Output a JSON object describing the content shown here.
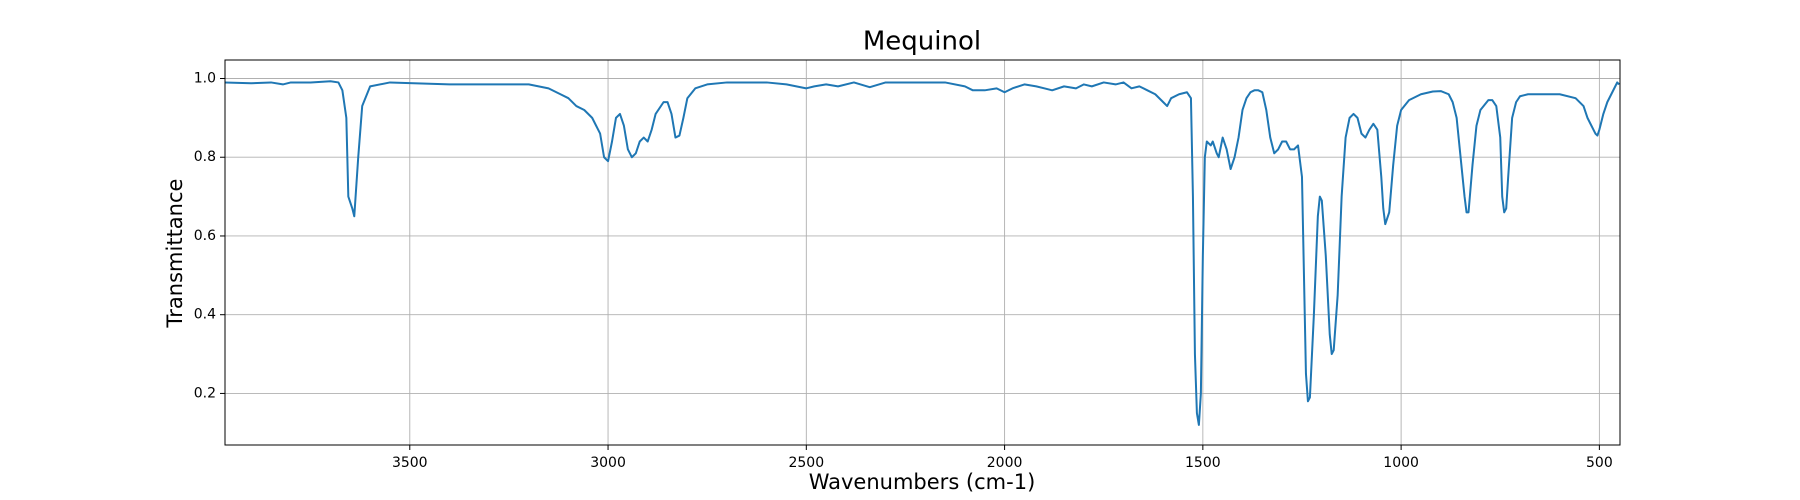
{
  "chart_data": {
    "type": "line",
    "title": "Mequinol",
    "xlabel": "Wavenumbers (cm-1)",
    "ylabel": "Transmittance",
    "color": "#1f77b4",
    "grid": true,
    "xlim": [
      3966,
      448
    ],
    "ylim": [
      0.069,
      1.047
    ],
    "xticks": [
      3500,
      3000,
      2500,
      2000,
      1500,
      1000,
      500
    ],
    "yticks": [
      0.2,
      0.4,
      0.6,
      0.8,
      {
        "value": 1,
        "label": "1.0"
      }
    ],
    "x": [
      3966,
      3900,
      3850,
      3820,
      3800,
      3750,
      3700,
      3680,
      3670,
      3660,
      3655,
      3645,
      3640,
      3630,
      3620,
      3600,
      3550,
      3400,
      3200,
      3150,
      3120,
      3100,
      3080,
      3060,
      3040,
      3030,
      3020,
      3010,
      3000,
      2990,
      2980,
      2970,
      2960,
      2950,
      2940,
      2930,
      2920,
      2910,
      2900,
      2890,
      2880,
      2860,
      2850,
      2840,
      2830,
      2820,
      2810,
      2800,
      2780,
      2750,
      2700,
      2600,
      2550,
      2500,
      2480,
      2450,
      2420,
      2380,
      2340,
      2300,
      2200,
      2150,
      2100,
      2080,
      2050,
      2020,
      2000,
      1980,
      1950,
      1920,
      1900,
      1880,
      1850,
      1820,
      1800,
      1780,
      1750,
      1720,
      1700,
      1680,
      1660,
      1640,
      1620,
      1600,
      1590,
      1580,
      1560,
      1540,
      1530,
      1525,
      1520,
      1515,
      1510,
      1505,
      1500,
      1495,
      1490,
      1480,
      1475,
      1465,
      1460,
      1450,
      1440,
      1430,
      1420,
      1410,
      1400,
      1390,
      1380,
      1370,
      1360,
      1350,
      1340,
      1330,
      1320,
      1310,
      1300,
      1290,
      1280,
      1270,
      1260,
      1250,
      1245,
      1240,
      1235,
      1230,
      1220,
      1210,
      1205,
      1200,
      1190,
      1180,
      1175,
      1170,
      1160,
      1150,
      1140,
      1130,
      1120,
      1110,
      1100,
      1090,
      1080,
      1070,
      1060,
      1050,
      1045,
      1040,
      1030,
      1020,
      1010,
      1000,
      980,
      950,
      920,
      900,
      880,
      870,
      860,
      850,
      840,
      835,
      830,
      820,
      810,
      800,
      780,
      770,
      760,
      750,
      745,
      740,
      735,
      730,
      720,
      710,
      700,
      680,
      650,
      600,
      560,
      540,
      530,
      520,
      510,
      505,
      500,
      490,
      480,
      470,
      460,
      455,
      450
    ],
    "values": [
      0.99,
      0.988,
      0.99,
      0.985,
      0.99,
      0.99,
      0.993,
      0.99,
      0.97,
      0.9,
      0.7,
      0.67,
      0.65,
      0.8,
      0.93,
      0.98,
      0.99,
      0.985,
      0.985,
      0.975,
      0.96,
      0.95,
      0.93,
      0.92,
      0.9,
      0.88,
      0.86,
      0.8,
      0.79,
      0.84,
      0.9,
      0.91,
      0.88,
      0.82,
      0.8,
      0.81,
      0.84,
      0.85,
      0.84,
      0.87,
      0.91,
      0.94,
      0.94,
      0.91,
      0.85,
      0.855,
      0.9,
      0.95,
      0.975,
      0.985,
      0.99,
      0.99,
      0.985,
      0.975,
      0.98,
      0.985,
      0.98,
      0.99,
      0.978,
      0.99,
      0.99,
      0.99,
      0.98,
      0.97,
      0.97,
      0.975,
      0.965,
      0.975,
      0.985,
      0.98,
      0.975,
      0.97,
      0.98,
      0.975,
      0.985,
      0.98,
      0.99,
      0.985,
      0.99,
      0.975,
      0.98,
      0.97,
      0.96,
      0.94,
      0.93,
      0.95,
      0.96,
      0.965,
      0.95,
      0.7,
      0.3,
      0.15,
      0.12,
      0.2,
      0.55,
      0.8,
      0.84,
      0.83,
      0.84,
      0.81,
      0.8,
      0.85,
      0.82,
      0.77,
      0.8,
      0.85,
      0.92,
      0.95,
      0.965,
      0.97,
      0.97,
      0.965,
      0.92,
      0.85,
      0.81,
      0.82,
      0.84,
      0.84,
      0.82,
      0.82,
      0.83,
      0.75,
      0.5,
      0.25,
      0.18,
      0.19,
      0.4,
      0.65,
      0.7,
      0.69,
      0.55,
      0.35,
      0.3,
      0.31,
      0.45,
      0.7,
      0.85,
      0.9,
      0.91,
      0.9,
      0.86,
      0.85,
      0.87,
      0.885,
      0.87,
      0.75,
      0.67,
      0.63,
      0.66,
      0.78,
      0.88,
      0.92,
      0.945,
      0.96,
      0.967,
      0.968,
      0.96,
      0.94,
      0.9,
      0.8,
      0.7,
      0.66,
      0.66,
      0.78,
      0.88,
      0.92,
      0.945,
      0.945,
      0.93,
      0.85,
      0.7,
      0.66,
      0.67,
      0.75,
      0.9,
      0.94,
      0.955,
      0.96,
      0.96,
      0.96,
      0.95,
      0.93,
      0.9,
      0.88,
      0.86,
      0.855,
      0.87,
      0.91,
      0.94,
      0.96,
      0.98,
      0.99,
      0.985
    ]
  }
}
